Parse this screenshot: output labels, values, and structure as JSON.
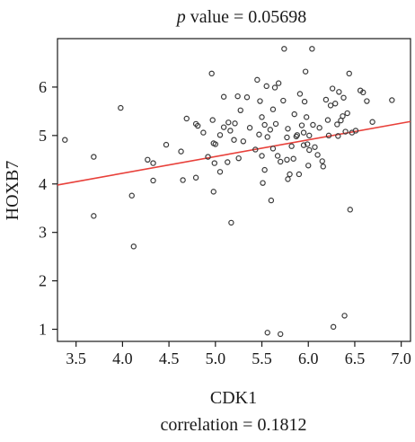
{
  "chart_data": {
    "type": "scatter",
    "title_prefix_italic": "p",
    "title_rest": " value = 0.05698",
    "xlabel": "CDK1",
    "ylabel": "HOXB7",
    "footer": "correlation = 0.1812",
    "xlim": [
      3.3,
      7.1
    ],
    "ylim": [
      0.75,
      7.0
    ],
    "x_ticks": [
      3.5,
      4.0,
      4.5,
      5.0,
      5.5,
      6.0,
      6.5,
      7.0
    ],
    "x_tick_labels": [
      "3.5",
      "4.0",
      "4.5",
      "5.0",
      "5.5",
      "6.0",
      "6.5",
      "7.0"
    ],
    "y_ticks": [
      1,
      2,
      3,
      4,
      5,
      6
    ],
    "y_tick_labels": [
      "1",
      "2",
      "3",
      "4",
      "5",
      "6"
    ],
    "grid": false,
    "regression": {
      "intercept": 2.84,
      "slope": 0.345,
      "color": "#e8403a"
    },
    "point_color": "#3a3a3a",
    "points": [
      [
        3.38,
        4.91
      ],
      [
        3.69,
        4.56
      ],
      [
        3.69,
        3.34
      ],
      [
        3.98,
        5.57
      ],
      [
        4.1,
        3.76
      ],
      [
        4.12,
        2.71
      ],
      [
        4.27,
        4.5
      ],
      [
        4.33,
        4.43
      ],
      [
        4.33,
        4.07
      ],
      [
        4.47,
        4.81
      ],
      [
        4.63,
        4.67
      ],
      [
        4.65,
        4.08
      ],
      [
        4.69,
        5.35
      ],
      [
        4.79,
        5.24
      ],
      [
        4.79,
        4.13
      ],
      [
        4.81,
        5.2
      ],
      [
        4.87,
        5.06
      ],
      [
        4.92,
        4.56
      ],
      [
        4.96,
        6.28
      ],
      [
        4.97,
        5.32
      ],
      [
        4.98,
        4.84
      ],
      [
        4.99,
        4.43
      ],
      [
        4.98,
        3.84
      ],
      [
        5.0,
        4.82
      ],
      [
        5.05,
        5.01
      ],
      [
        5.05,
        4.25
      ],
      [
        5.09,
        5.8
      ],
      [
        5.09,
        5.17
      ],
      [
        5.13,
        4.45
      ],
      [
        5.14,
        5.27
      ],
      [
        5.16,
        5.1
      ],
      [
        5.17,
        3.2
      ],
      [
        5.2,
        4.91
      ],
      [
        5.21,
        5.25
      ],
      [
        5.24,
        5.81
      ],
      [
        5.25,
        4.53
      ],
      [
        5.27,
        5.52
      ],
      [
        5.3,
        4.88
      ],
      [
        5.34,
        5.79
      ],
      [
        5.37,
        5.16
      ],
      [
        5.43,
        4.71
      ],
      [
        5.45,
        6.15
      ],
      [
        5.47,
        5.02
      ],
      [
        5.48,
        5.71
      ],
      [
        5.5,
        5.38
      ],
      [
        5.5,
        4.58
      ],
      [
        5.51,
        4.02
      ],
      [
        5.53,
        4.29
      ],
      [
        5.53,
        5.22
      ],
      [
        5.55,
        6.02
      ],
      [
        5.56,
        4.97
      ],
      [
        5.56,
        0.93
      ],
      [
        5.59,
        5.12
      ],
      [
        5.6,
        3.66
      ],
      [
        5.62,
        4.73
      ],
      [
        5.62,
        5.54
      ],
      [
        5.64,
        5.99
      ],
      [
        5.65,
        5.24
      ],
      [
        5.67,
        4.58
      ],
      [
        5.68,
        6.08
      ],
      [
        5.7,
        4.46
      ],
      [
        5.7,
        0.9
      ],
      [
        5.73,
        5.72
      ],
      [
        5.74,
        6.79
      ],
      [
        5.77,
        4.5
      ],
      [
        5.77,
        4.96
      ],
      [
        5.78,
        5.14
      ],
      [
        5.8,
        4.2
      ],
      [
        5.82,
        4.78
      ],
      [
        5.84,
        4.52
      ],
      [
        5.85,
        5.44
      ],
      [
        5.87,
        4.98
      ],
      [
        5.88,
        5.01
      ],
      [
        5.9,
        4.2
      ],
      [
        5.91,
        5.86
      ],
      [
        5.93,
        5.21
      ],
      [
        5.95,
        4.8
      ],
      [
        5.95,
        5.06
      ],
      [
        5.96,
        5.7
      ],
      [
        5.97,
        6.32
      ],
      [
        5.98,
        5.38
      ],
      [
        5.99,
        4.82
      ],
      [
        6.0,
        4.38
      ],
      [
        6.01,
        5.0
      ],
      [
        6.01,
        4.7
      ],
      [
        6.04,
        6.79
      ],
      [
        6.05,
        5.22
      ],
      [
        6.07,
        4.76
      ],
      [
        6.1,
        4.6
      ],
      [
        6.12,
        5.16
      ],
      [
        6.15,
        4.47
      ],
      [
        6.16,
        4.36
      ],
      [
        6.19,
        5.74
      ],
      [
        6.21,
        5.32
      ],
      [
        6.22,
        5.0
      ],
      [
        6.24,
        5.62
      ],
      [
        6.26,
        5.97
      ],
      [
        6.27,
        1.05
      ],
      [
        6.29,
        5.66
      ],
      [
        6.31,
        5.23
      ],
      [
        6.33,
        5.9
      ],
      [
        6.35,
        5.31
      ],
      [
        6.37,
        5.4
      ],
      [
        6.38,
        5.78
      ],
      [
        6.39,
        1.28
      ],
      [
        6.4,
        5.08
      ],
      [
        6.42,
        5.46
      ],
      [
        6.44,
        6.28
      ],
      [
        6.45,
        3.47
      ],
      [
        6.47,
        5.06
      ],
      [
        6.51,
        5.1
      ],
      [
        6.56,
        5.93
      ],
      [
        6.59,
        5.89
      ],
      [
        6.63,
        5.71
      ],
      [
        6.69,
        5.28
      ],
      [
        6.9,
        5.73
      ],
      [
        6.32,
        4.99
      ],
      [
        5.78,
        4.1
      ]
    ]
  }
}
